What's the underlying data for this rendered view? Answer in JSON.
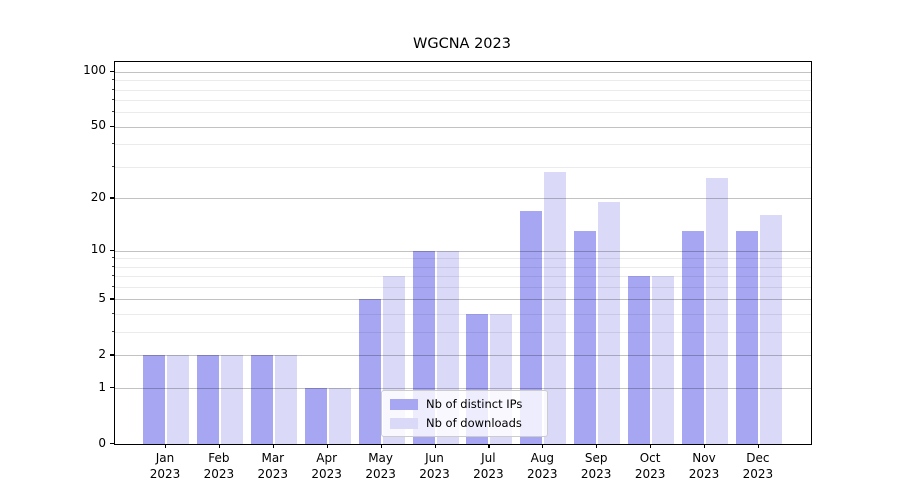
{
  "title": "WGCNA 2023",
  "colors": {
    "distinct_ips": "#a6a6f3",
    "downloads": "#dadaf8",
    "grid_major": "#c2c2c2",
    "grid_minor": "#ebebeb",
    "axis": "#000000",
    "legend_border": "#cccccc"
  },
  "legend": {
    "items": [
      {
        "label": "Nb of distinct IPs",
        "color": "#a6a6f3"
      },
      {
        "label": "Nb of downloads",
        "color": "#dadaf8"
      }
    ]
  },
  "y_axis": {
    "tick_labels": [
      "0",
      "1",
      "2",
      "5",
      "10",
      "20",
      "50",
      "100"
    ]
  },
  "chart_data": {
    "type": "bar",
    "title": "WGCNA 2023",
    "categories": [
      "Jan 2023",
      "Feb 2023",
      "Mar 2023",
      "Apr 2023",
      "May 2023",
      "Jun 2023",
      "Jul 2023",
      "Aug 2023",
      "Sep 2023",
      "Oct 2023",
      "Nov 2023",
      "Dec 2023"
    ],
    "x_tick_labels": [
      [
        "Jan",
        "2023"
      ],
      [
        "Feb",
        "2023"
      ],
      [
        "Mar",
        "2023"
      ],
      [
        "Apr",
        "2023"
      ],
      [
        "May",
        "2023"
      ],
      [
        "Jun",
        "2023"
      ],
      [
        "Jul",
        "2023"
      ],
      [
        "Aug",
        "2023"
      ],
      [
        "Sep",
        "2023"
      ],
      [
        "Oct",
        "2023"
      ],
      [
        "Nov",
        "2023"
      ],
      [
        "Dec",
        "2023"
      ]
    ],
    "series": [
      {
        "name": "Nb of distinct IPs",
        "color": "#a6a6f3",
        "values": [
          2,
          2,
          2,
          1,
          5,
          10,
          4,
          17,
          13,
          7,
          13,
          13
        ]
      },
      {
        "name": "Nb of downloads",
        "color": "#dadaf8",
        "values": [
          2,
          2,
          2,
          1,
          7,
          10,
          4,
          28,
          19,
          7,
          26,
          16
        ]
      }
    ],
    "xlabel": "",
    "ylabel": "",
    "yscale": "log1p",
    "yticks": [
      0,
      1,
      2,
      5,
      10,
      20,
      50,
      100
    ],
    "yticks_minor": [
      3,
      4,
      6,
      7,
      8,
      9,
      30,
      40,
      60,
      70,
      80,
      90
    ],
    "ylim": [
      0,
      113
    ],
    "grid": true,
    "grid_above_bars": true,
    "legend_position": "inside-bottom-center"
  }
}
